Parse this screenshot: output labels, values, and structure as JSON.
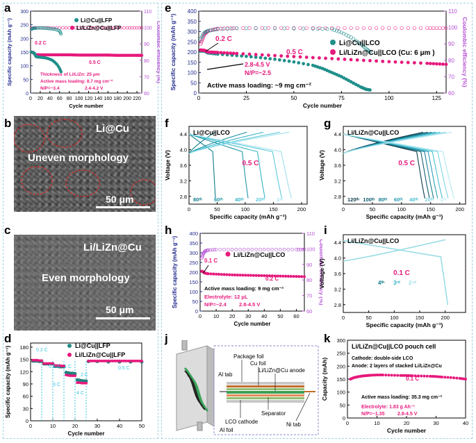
{
  "panels": {
    "a": "a",
    "b": "b",
    "c": "c",
    "d": "d",
    "e": "e",
    "f": "f",
    "g": "g",
    "h": "h",
    "i": "i",
    "j": "j",
    "k": "k"
  },
  "colors": {
    "teal": "#1f8f8a",
    "pink": "#e6197c",
    "purple": "#b44fd2",
    "cyan": "#36c6e0"
  },
  "micro_b": {
    "title": "Li@Cu",
    "caption": "Uneven morphology",
    "scale": "50 μm"
  },
  "micro_c": {
    "title": "Li/LiZn@Cu",
    "caption": "Even morphology",
    "scale": "50 μm"
  },
  "chart_data": [
    {
      "id": "a",
      "type": "scatter",
      "xlabel": "Cycle number",
      "ylabel": "Specific capacity (mAh g⁻¹)",
      "y2label": "Coulombic efficiency (%)",
      "xlim": [
        0,
        230
      ],
      "ylim": [
        0,
        300
      ],
      "y2lim": [
        60,
        110
      ],
      "xticks": [
        "0",
        "20",
        "40",
        "60",
        "80",
        "100",
        "120",
        "140",
        "160",
        "180",
        "200",
        "220"
      ],
      "yticks": [
        "0",
        "50",
        "100",
        "150",
        "200",
        "250",
        "300"
      ],
      "y2ticks": [
        "60",
        "70",
        "80",
        "90",
        "100",
        "110"
      ],
      "series": [
        {
          "name": "Li@Cu||LFP",
          "kind": "capacity",
          "x": [
            1,
            3,
            5,
            8,
            10,
            12,
            15,
            20,
            25,
            30,
            35,
            40,
            45,
            50,
            55,
            60,
            63
          ],
          "y": [
            150,
            149,
            148,
            146,
            137,
            133,
            132,
            131,
            130,
            129,
            127,
            124,
            120,
            113,
            104,
            90,
            78
          ]
        },
        {
          "name": "Li/LiZn@Cu||LFP",
          "kind": "capacity",
          "x": [
            1,
            5,
            10,
            20,
            40,
            60,
            80,
            100,
            120,
            140,
            160,
            180,
            200,
            220,
            230
          ],
          "y": [
            150,
            149,
            140,
            140,
            140,
            140,
            140,
            139,
            139,
            139,
            139,
            138,
            138,
            138,
            138
          ]
        },
        {
          "name": "Li@Cu||LFP CE",
          "kind": "ce",
          "x": [
            2,
            5,
            10,
            20,
            30,
            40,
            50,
            60,
            63
          ],
          "y": [
            99,
            99.5,
            99.6,
            99.7,
            99.6,
            99.3,
            99,
            98,
            96
          ]
        },
        {
          "name": "Li/LiZn@Cu||LFP CE",
          "kind": "ce",
          "x": [
            2,
            10,
            40,
            80,
            120,
            160,
            200,
            230
          ],
          "y": [
            99.5,
            99.8,
            99.8,
            99.8,
            99.8,
            99.8,
            99.8,
            99.8
          ]
        }
      ],
      "annotations": [
        "0.2 C",
        "0.5 C",
        "Thickness of Li/LiZn: 25 μm",
        "Active mass loading: 8.7 mg cm⁻²",
        "N/P=~3.4",
        "2.4-4.2 V"
      ]
    },
    {
      "id": "d",
      "type": "scatter",
      "xlabel": "Cycle number",
      "ylabel": "Specific capacity (mAh g⁻¹)",
      "xlim": [
        0,
        50
      ],
      "ylim": [
        0,
        190
      ],
      "xticks": [
        "0",
        "10",
        "20",
        "30",
        "40",
        "50"
      ],
      "yticks": [
        "0",
        "30",
        "60",
        "90",
        "120",
        "150",
        "180"
      ],
      "series": [
        {
          "name": "Li@Cu||LFP",
          "x": [
            1,
            2,
            3,
            4,
            5,
            6,
            7,
            8,
            9,
            10,
            11,
            12,
            13,
            14,
            15,
            16,
            17,
            18,
            19,
            20,
            21,
            22,
            23,
            24,
            25,
            26,
            30,
            35,
            40,
            45,
            50
          ],
          "y": [
            146,
            146,
            146,
            145,
            145,
            139,
            139,
            139,
            139,
            139,
            133,
            133,
            132,
            132,
            132,
            118,
            117,
            116,
            116,
            115,
            100,
            99,
            98,
            97,
            97,
            145,
            145,
            144,
            144,
            144,
            144
          ]
        },
        {
          "name": "Li/LiZn@Cu||LFP",
          "x": [
            1,
            2,
            3,
            4,
            5,
            6,
            7,
            8,
            9,
            10,
            11,
            12,
            13,
            14,
            15,
            16,
            17,
            18,
            19,
            20,
            21,
            22,
            23,
            24,
            25,
            26,
            30,
            35,
            40,
            45,
            50
          ],
          "y": [
            148,
            148,
            148,
            147,
            147,
            140,
            140,
            140,
            140,
            140,
            135,
            135,
            135,
            134,
            134,
            112,
            111,
            110,
            110,
            110,
            93,
            93,
            92,
            92,
            92,
            146,
            146,
            146,
            146,
            146,
            146
          ]
        }
      ],
      "annotations": [
        "0.2 C",
        "0.5 C",
        "1 C",
        "2 C",
        "3 C",
        "4 C",
        "0.5 C"
      ]
    },
    {
      "id": "e",
      "type": "scatter",
      "xlabel": "Cycle number",
      "ylabel": "Specific capacity (mAh g⁻¹)",
      "y2label": "Coulombic efficiency (%)",
      "xlim": [
        0,
        130
      ],
      "ylim": [
        0,
        400
      ],
      "y2lim": [
        60,
        110
      ],
      "xticks": [
        "0",
        "25",
        "50",
        "75",
        "100",
        "125"
      ],
      "yticks": [
        "0",
        "50",
        "100",
        "150",
        "200",
        "250",
        "300",
        "350",
        "400"
      ],
      "y2ticks": [
        "60",
        "70",
        "80",
        "90",
        "100",
        "110"
      ],
      "series": [
        {
          "name": "Li@Cu||LCO",
          "kind": "capacity",
          "x": [
            1,
            3,
            5,
            10,
            20,
            30,
            40,
            50,
            60,
            65,
            70,
            75,
            80,
            85,
            88,
            90
          ],
          "y": [
            205,
            205,
            195,
            190,
            183,
            175,
            165,
            152,
            135,
            120,
            100,
            80,
            55,
            30,
            18,
            15
          ]
        },
        {
          "name": "Li/LiZn@Cu||LCO (Cu: 6 μm )",
          "kind": "capacity",
          "x": [
            1,
            3,
            5,
            10,
            20,
            40,
            60,
            80,
            100,
            120,
            130
          ],
          "y": [
            210,
            208,
            200,
            198,
            193,
            183,
            173,
            163,
            153,
            145,
            140
          ]
        },
        {
          "name": "Li@Cu||LCO CE",
          "kind": "ce",
          "x": [
            1,
            3,
            5,
            10,
            20,
            40,
            60,
            70,
            75,
            80,
            85,
            88,
            90
          ],
          "y": [
            93,
            97,
            98,
            99,
            99.5,
            99.5,
            99.3,
            99,
            97,
            94,
            90,
            87,
            85
          ]
        },
        {
          "name": "Li/LiZn@Cu||LCO CE",
          "kind": "ce",
          "x": [
            1,
            3,
            5,
            10,
            20,
            40,
            60,
            80,
            100,
            120,
            130
          ],
          "y": [
            90,
            96,
            98,
            99.3,
            99.6,
            99.7,
            99.7,
            99.7,
            99.7,
            99.7,
            99.7
          ]
        }
      ],
      "annotations": [
        "0.2 C",
        "0.5 C",
        "2.8-4.5 V",
        "N/P=~2.5",
        "Active mass loading: ~9 mg cm⁻²"
      ]
    },
    {
      "id": "f",
      "type": "line",
      "xlabel": "Specific capacity (mAh g⁻¹)",
      "ylabel": "Voltage (V)",
      "xlim": [
        0,
        210
      ],
      "ylim": [
        2.6,
        4.6
      ],
      "xticks": [
        "0",
        "50",
        "100",
        "150",
        "200"
      ],
      "yticks": [
        "2.8",
        "3.2",
        "3.6",
        "4.0",
        "4.4"
      ],
      "title": "Li@Cu||LCO",
      "rate": "0.5 C",
      "cycle_labels": [
        "80ᵗʰ",
        "60ᵗʰ",
        "40ᵗʰ",
        "20ᵗʰ",
        "1ˢᵗ"
      ],
      "discharge_end_capacity": [
        47,
        105,
        135,
        165,
        182
      ]
    },
    {
      "id": "g",
      "type": "line",
      "xlabel": "Specific capacity (mAh g⁻¹)",
      "ylabel": "Voltage (V)",
      "xlim": [
        0,
        210
      ],
      "ylim": [
        2.6,
        4.6
      ],
      "xticks": [
        "0",
        "50",
        "100",
        "150",
        "200"
      ],
      "yticks": [
        "2.8",
        "3.2",
        "3.6",
        "4.0",
        "4.4"
      ],
      "title": "Li/LiZn@Cu||LCO",
      "rate": "0.5 C",
      "cycle_labels": [
        "120ᵗʰ",
        "100ᵗʰ",
        "80ᵗʰ",
        "60ᵗʰ",
        "40ᵗʰ",
        "20ᵗʰ",
        "1ˢᵗ"
      ],
      "discharge_end_capacity": [
        140,
        148,
        155,
        162,
        170,
        180,
        190
      ]
    },
    {
      "id": "h",
      "type": "scatter",
      "xlabel": "Cycle number",
      "ylabel": "Specific capacity (mAh g⁻¹)",
      "y2label": "Coulombic efficiency (%)",
      "xlim": [
        0,
        65
      ],
      "ylim": [
        0,
        400
      ],
      "y2lim": [
        60,
        110
      ],
      "xticks": [
        "0",
        "10",
        "20",
        "30",
        "40",
        "50",
        "60"
      ],
      "yticks": [
        "0",
        "50",
        "100",
        "150",
        "200",
        "250",
        "300",
        "350",
        "400"
      ],
      "y2ticks": [
        "60",
        "70",
        "80",
        "90",
        "100",
        "110"
      ],
      "series": [
        {
          "name": "Li/LiZn@Cu||LCO",
          "kind": "capacity",
          "x": [
            1,
            2,
            3,
            5,
            10,
            15,
            20,
            25,
            30,
            35,
            40,
            45,
            50,
            55,
            60,
            65
          ],
          "y": [
            205,
            202,
            195,
            192,
            190,
            188,
            186,
            185,
            184,
            183,
            182,
            181,
            180,
            179,
            178,
            177
          ]
        },
        {
          "name": "Li/LiZn@Cu||LCO CE",
          "kind": "ce",
          "x": [
            1,
            2,
            3,
            5,
            10,
            20,
            30,
            40,
            50,
            60,
            65
          ],
          "y": [
            94,
            97,
            98.5,
            99.2,
            99.5,
            99.6,
            99.6,
            99.6,
            99.6,
            99.6,
            99.6
          ]
        }
      ],
      "annotations": [
        "0.1 C",
        "0.2 C",
        "Active mass loading: 9 mg cm⁻²",
        "Electrolyte: 12 μL",
        "N/P=~2.4",
        "2.8-4.5 V"
      ]
    },
    {
      "id": "i",
      "type": "line",
      "xlabel": "Specific capacity (mAh g⁻¹)",
      "ylabel": "Voltage (V)",
      "xlim": [
        0,
        240
      ],
      "ylim": [
        2.6,
        4.6
      ],
      "xticks": [
        "0",
        "50",
        "100",
        "150",
        "200"
      ],
      "yticks": [
        "2.8",
        "3.2",
        "3.6",
        "4.0",
        "4.4"
      ],
      "title": "Li/LiZn@Cu||LCO",
      "rate": "0.1 C",
      "cycle_labels": [
        "4ᵗʰ",
        "3ʳᵈ",
        "2ⁿᵈ"
      ]
    },
    {
      "id": "k",
      "type": "scatter",
      "xlabel": "Cycle number",
      "ylabel": "Capacity (mAh)",
      "xlim": [
        0,
        40
      ],
      "ylim": [
        0,
        300
      ],
      "xticks": [
        "0",
        "10",
        "20",
        "30",
        "40"
      ],
      "yticks": [
        "0",
        "50",
        "100",
        "150",
        "200",
        "250",
        "300"
      ],
      "title": "Li/LiZn@Cu||LCO pouch cell",
      "series": [
        {
          "name": "pouch cell",
          "x": [
            1,
            2,
            3,
            4,
            5,
            6,
            7,
            8,
            10,
            12,
            15,
            18,
            20,
            22,
            25,
            28,
            30,
            32,
            35,
            38,
            40
          ],
          "y": [
            150,
            155,
            158,
            160,
            162,
            163,
            164,
            165,
            166,
            166,
            165,
            164,
            164,
            163,
            162,
            161,
            160,
            158,
            156,
            153,
            150
          ]
        }
      ],
      "annotations": [
        "Cathode: double-side LCO",
        "Anode: 2 layers of stacked Li/LiZn@Cu",
        "0.1 C",
        "Active mass loading: 35.3 mg cm⁻²",
        "Electrolyte: 1.83 g Ah⁻¹",
        "N/P=~1.35",
        "2.8-4.5 V"
      ]
    }
  ],
  "schematic_j": {
    "labels": [
      "Package foil",
      "Cu foil",
      "Li/LiZn@Cu anode",
      "Al tab",
      "Separator",
      "Ni tab",
      "LCO cathode",
      "Al foil"
    ]
  }
}
